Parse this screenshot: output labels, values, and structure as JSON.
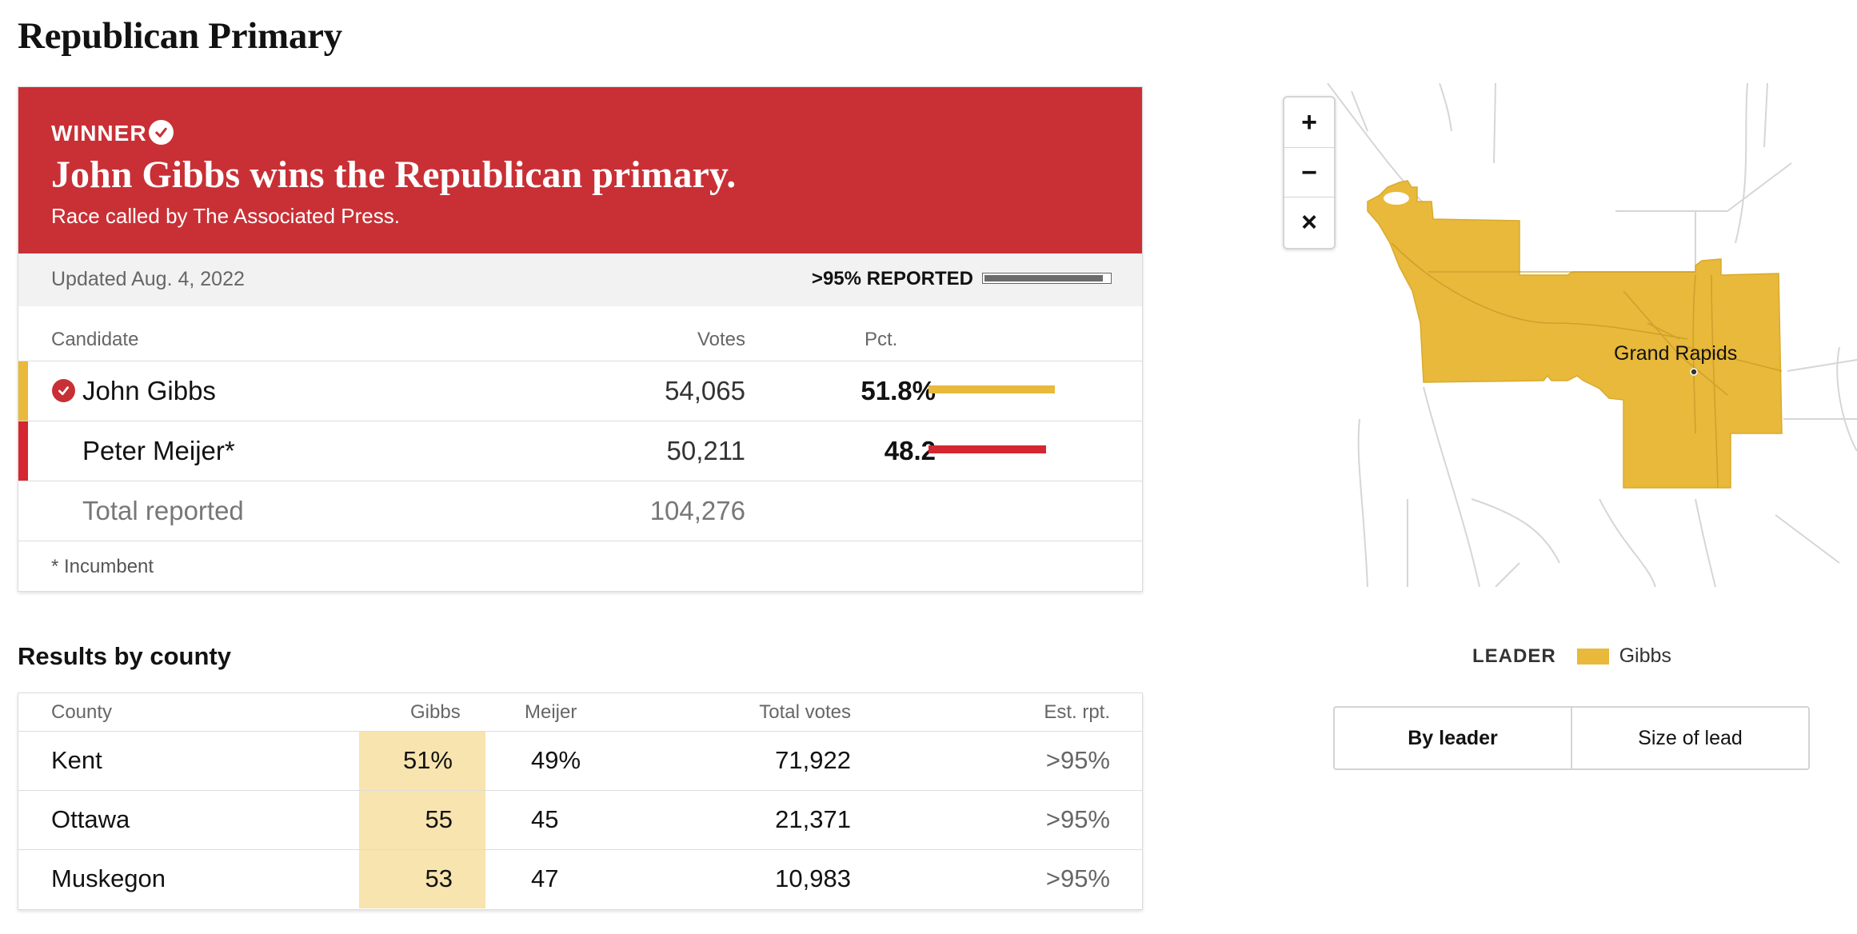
{
  "page": {
    "title": "Republican Primary"
  },
  "banner": {
    "winner_label": "WINNER",
    "headline": "John Gibbs wins the Republican primary.",
    "subtext": "Race called by The Associated Press."
  },
  "status": {
    "updated": "Updated Aug. 4, 2022",
    "reported": ">95% REPORTED",
    "reported_fraction": 0.95
  },
  "results": {
    "headers": {
      "candidate": "Candidate",
      "votes": "Votes",
      "pct": "Pct."
    },
    "candidates": [
      {
        "name": "John Gibbs",
        "votes": "54,065",
        "pct": "51.8%",
        "pct_value": 51.8,
        "color": "#e8b93a",
        "winner": true
      },
      {
        "name": "Peter Meijer*",
        "votes": "50,211",
        "pct": "48.2",
        "pct_value": 48.2,
        "color": "#d42731",
        "winner": false
      }
    ],
    "total": {
      "label": "Total reported",
      "votes": "104,276"
    },
    "footnote": "* Incumbent"
  },
  "county": {
    "title": "Results by county",
    "headers": {
      "county": "County",
      "gibbs": "Gibbs",
      "meijer": "Meijer",
      "total": "Total votes",
      "rpt": "Est. rpt."
    },
    "rows": [
      {
        "county": "Kent",
        "gibbs": "51%",
        "meijer": "49%",
        "total": "71,922",
        "rpt": ">95%"
      },
      {
        "county": "Ottawa",
        "gibbs": "55",
        "meijer": "45",
        "total": "21,371",
        "rpt": ">95%"
      },
      {
        "county": "Muskegon",
        "gibbs": "53",
        "meijer": "47",
        "total": "10,983",
        "rpt": ">95%"
      }
    ]
  },
  "map": {
    "zoom_in": "+",
    "zoom_out": "−",
    "reset": "×",
    "city_label": "Grand Rapids",
    "fill_color": "#e8b93a",
    "legend": {
      "title": "LEADER",
      "name": "Gibbs",
      "color": "#e8b93a"
    },
    "toggle": {
      "by_leader": "By leader",
      "size_of_lead": "Size of lead"
    }
  }
}
